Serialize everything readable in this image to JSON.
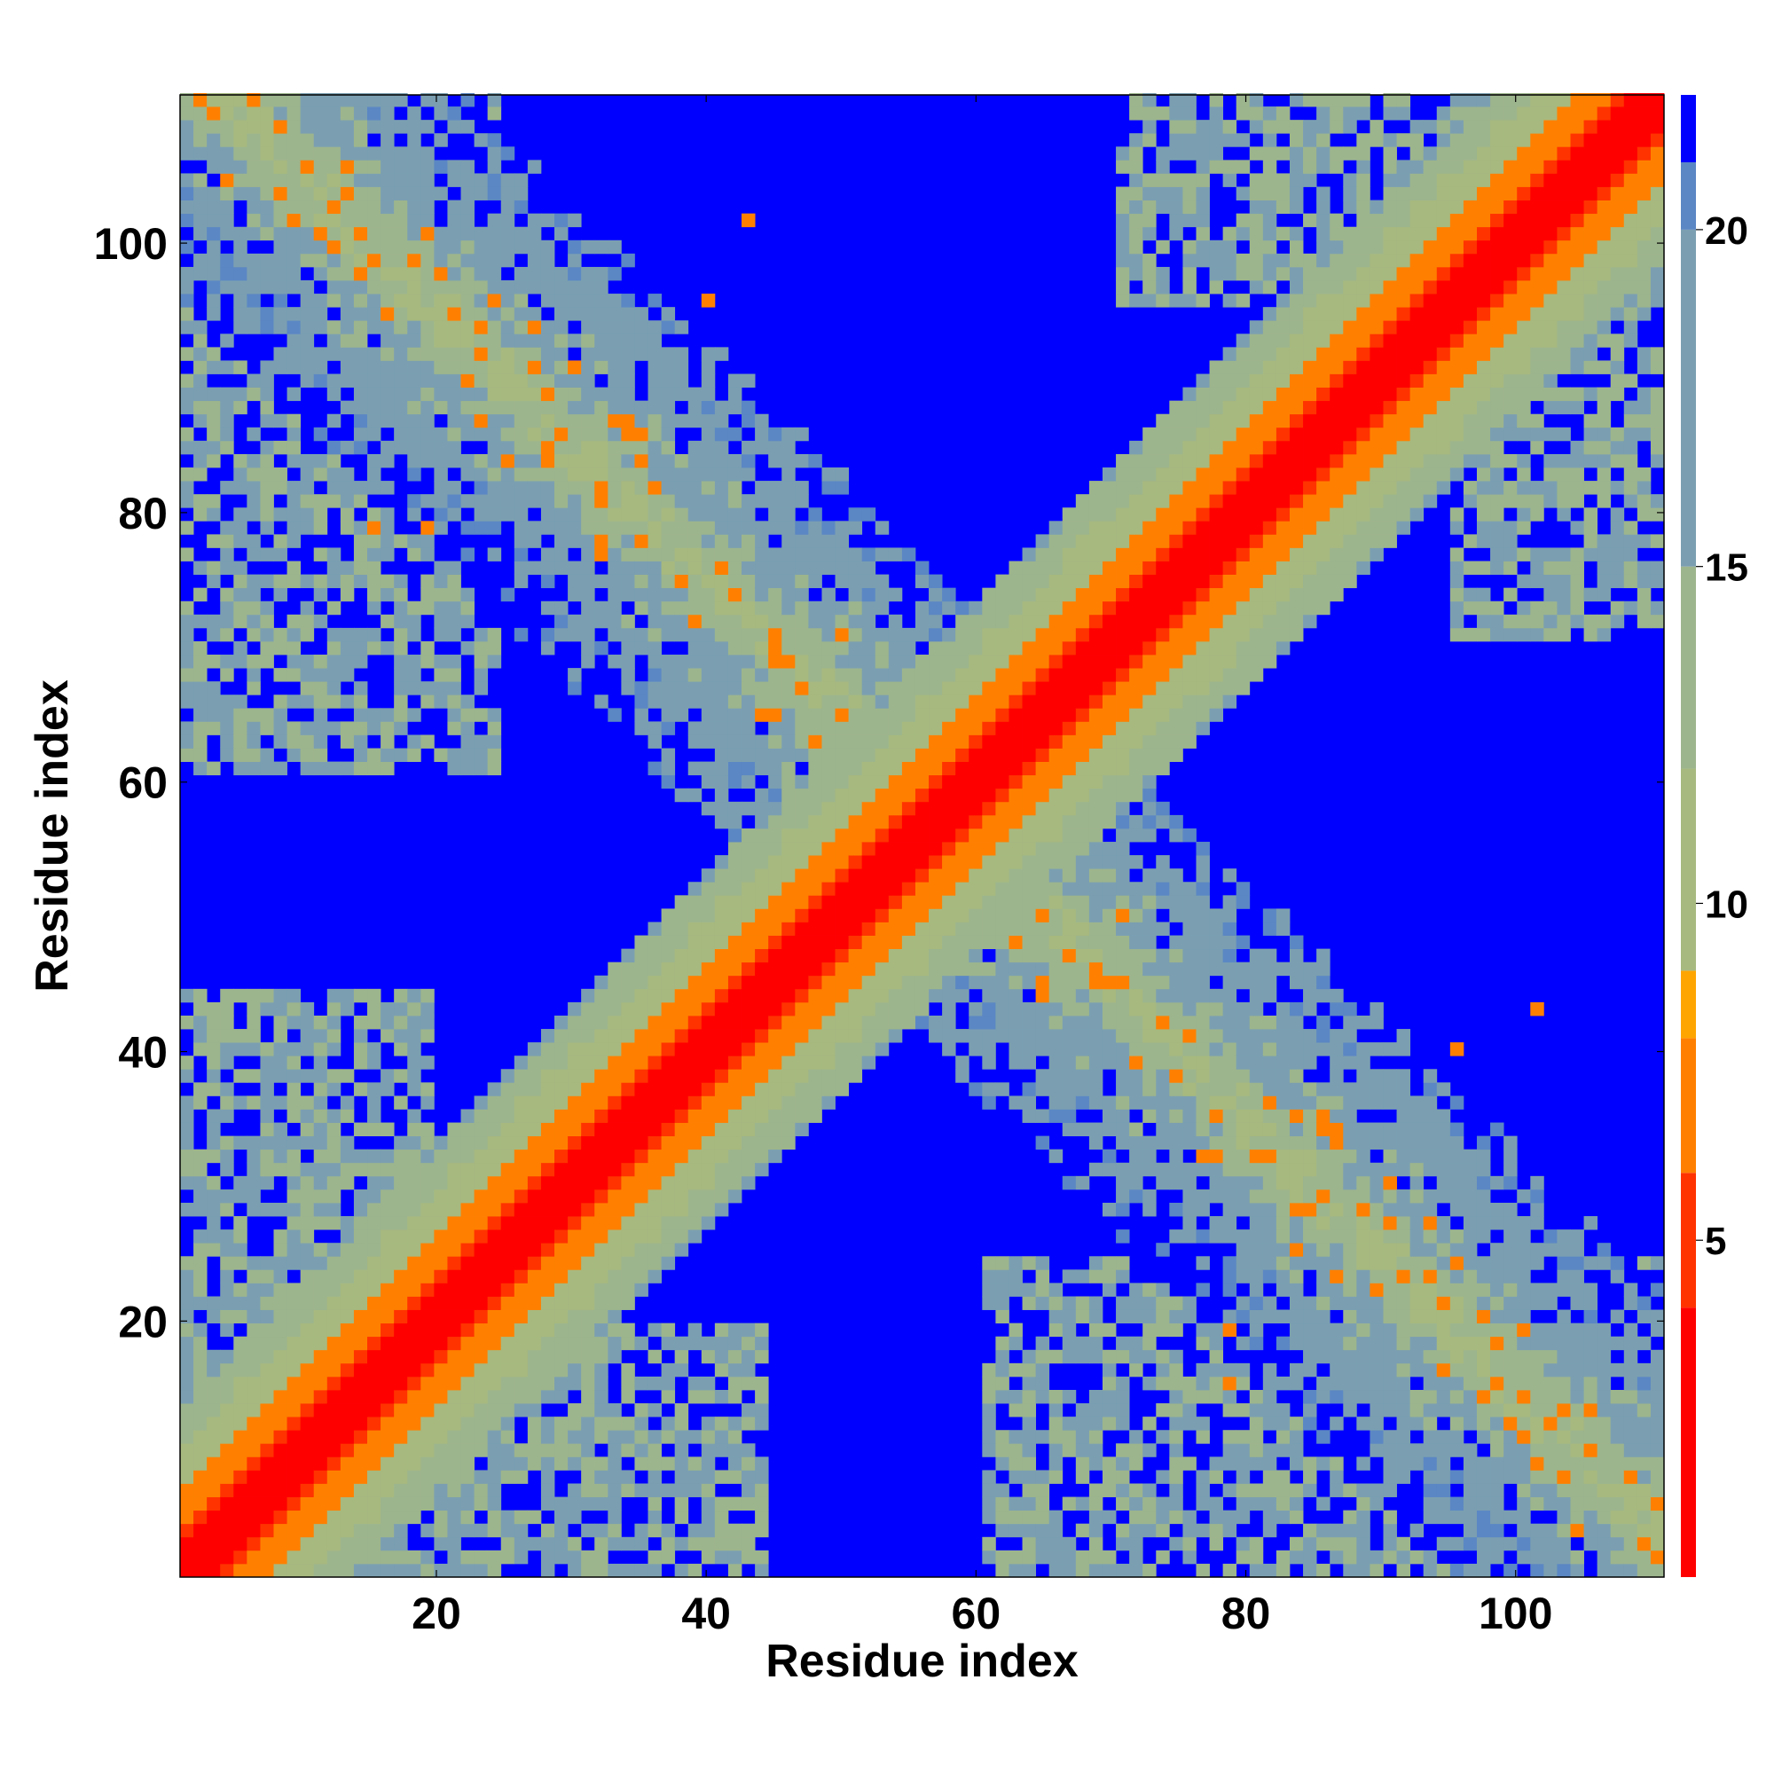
{
  "chart_data": {
    "type": "heatmap",
    "title": "",
    "xlabel": "Residue index",
    "ylabel": "Residue index",
    "xlim": [
      1,
      111
    ],
    "ylim": [
      1,
      111
    ],
    "n_residues": 111,
    "x_ticks": [
      20,
      40,
      60,
      80,
      100
    ],
    "y_ticks": [
      20,
      40,
      60,
      80,
      100
    ],
    "x_tick_labels": [
      "20",
      "40",
      "60",
      "80",
      "100"
    ],
    "y_tick_labels": [
      "20",
      "40",
      "60",
      "80",
      "100"
    ],
    "colorbar": {
      "range": [
        0,
        22
      ],
      "ticks": [
        5,
        10,
        15,
        20
      ],
      "tick_labels": [
        "5",
        "10",
        "15",
        "20"
      ],
      "cutoff_value": 21,
      "cutoff_color": "#0000ff",
      "color_stops": [
        {
          "value": 0,
          "color": "#ff0000"
        },
        {
          "value": 4,
          "color": "#ff3300"
        },
        {
          "value": 6,
          "color": "#ff8000"
        },
        {
          "value": 8,
          "color": "#ffa500"
        },
        {
          "value": 9,
          "color": "#a7b97f"
        },
        {
          "value": 12,
          "color": "#9db58d"
        },
        {
          "value": 15,
          "color": "#7b9fb1"
        },
        {
          "value": 20,
          "color": "#5b87c4"
        }
      ]
    },
    "structure": {
      "diagonal_band": "contact distances increase with |i-j|; red/orange near the diagonal, green-grey band out to |i-j| about 12",
      "antiparallel_contact_bands": [
        {
          "i_range": [
            1,
            55
          ],
          "j_range": [
            55,
            111
          ],
          "description": "anti-diagonal contact band along i + j = 115, upper-left to center"
        },
        {
          "i_range": [
            55,
            111
          ],
          "j_range": [
            1,
            55
          ],
          "description": "symmetric anti-diagonal band, center to lower-right"
        }
      ],
      "hotspot_contacts": [
        [
          34,
          86
        ],
        [
          35,
          84
        ],
        [
          33,
          87
        ],
        [
          45,
          70
        ],
        [
          47,
          67
        ],
        [
          50,
          65
        ],
        [
          40,
          96
        ],
        [
          43,
          102
        ],
        [
          10,
          106
        ],
        [
          18,
          99
        ],
        [
          21,
          95
        ],
        [
          23,
          92
        ],
        [
          15,
          79
        ],
        [
          19,
          79
        ],
        [
          86,
          34
        ],
        [
          84,
          35
        ],
        [
          87,
          33
        ],
        [
          70,
          45
        ],
        [
          67,
          47
        ],
        [
          65,
          50
        ],
        [
          96,
          40
        ],
        [
          102,
          43
        ],
        [
          106,
          10
        ],
        [
          99,
          18
        ],
        [
          95,
          21
        ],
        [
          92,
          23
        ],
        [
          79,
          15
        ],
        [
          79,
          19
        ]
      ]
    }
  }
}
